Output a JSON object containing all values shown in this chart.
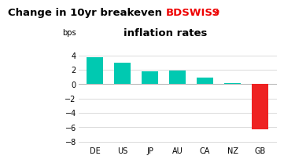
{
  "categories": [
    "DE",
    "US",
    "JP",
    "AU",
    "CA",
    "NZ",
    "GB"
  ],
  "values": [
    3.7,
    3.0,
    1.8,
    1.85,
    0.9,
    0.15,
    -6.3
  ],
  "bar_colors": [
    "#00C9B1",
    "#00C9B1",
    "#00C9B1",
    "#00C9B1",
    "#00C9B1",
    "#00C9B1",
    "#EE2222"
  ],
  "title_part1": "Change in 10yr breakeven ",
  "title_brand": "BDSWISS",
  "title_arrow": "↗",
  "title_line2": "inflation rates",
  "ylabel": "bps",
  "ylim": [
    -8.5,
    5.5
  ],
  "yticks": [
    -8,
    -6,
    -4,
    -2,
    0,
    2,
    4
  ],
  "background_color": "#ffffff",
  "grid_color": "#cccccc",
  "brand_color": "#EE0000",
  "title_fontsize": 9.5,
  "axis_fontsize": 7,
  "ylabel_fontsize": 7
}
